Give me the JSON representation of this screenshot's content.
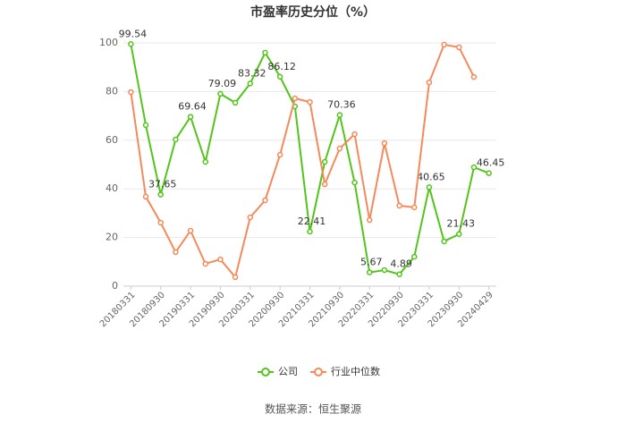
{
  "chart_data": {
    "type": "line",
    "title": "市盈率历史分位（%）",
    "source": "数据来源：恒生聚源",
    "categories": [
      "20180331",
      null,
      "20180930",
      null,
      "20190331",
      null,
      "20190930",
      null,
      "20200331",
      null,
      "20200930",
      null,
      "20210331",
      null,
      "20210930",
      null,
      "20220331",
      null,
      "20220930",
      null,
      "20230331",
      null,
      "20230930",
      null,
      "20240429"
    ],
    "series": [
      {
        "name": "公司",
        "color": "#52c41a",
        "values": [
          99.54,
          66.2,
          37.65,
          60.3,
          69.64,
          51.1,
          79.09,
          75.4,
          83.32,
          96.0,
          86.12,
          73.9,
          22.41,
          51.1,
          70.36,
          42.6,
          5.67,
          6.6,
          4.89,
          12.1,
          40.65,
          18.4,
          21.43,
          48.9,
          46.45
        ],
        "value_labels": [
          "99.54",
          null,
          "37.65",
          null,
          "69.64",
          null,
          "79.09",
          null,
          "83.32",
          null,
          "86.12",
          null,
          "22.41",
          null,
          "70.36",
          null,
          "5.67",
          null,
          "4.89",
          null,
          "40.65",
          null,
          "21.43",
          null,
          "46.45"
        ]
      },
      {
        "name": "行业中位数",
        "color": "#f5895a",
        "values": [
          79.8,
          36.8,
          26.1,
          14.0,
          22.8,
          9.2,
          11.0,
          3.7,
          28.3,
          35.3,
          54.0,
          77.2,
          75.7,
          41.9,
          56.6,
          62.5,
          27.2,
          58.8,
          33.1,
          32.4,
          83.8,
          99.3,
          98.2,
          86.0,
          null
        ]
      }
    ],
    "ylim": [
      0,
      100
    ],
    "yticks": [
      0,
      20,
      40,
      60,
      80,
      100
    ],
    "grid": true,
    "legend": "bottom"
  }
}
